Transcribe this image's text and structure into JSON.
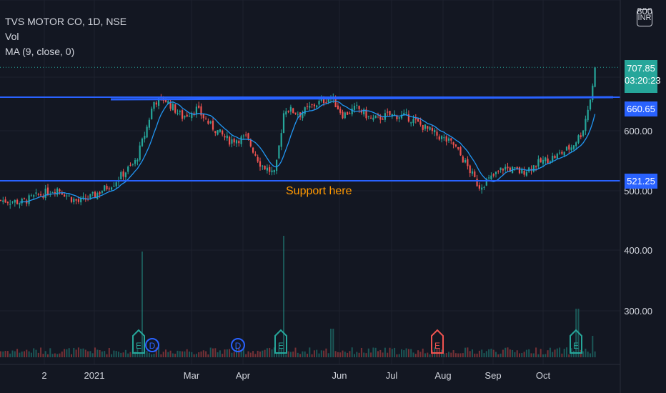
{
  "legend": {
    "symbol": "TVS MOTOR CO, 1D, NSE",
    "vol": "Vol",
    "ma": "MA (9, close, 0)"
  },
  "currency_button": "INR",
  "last_price": {
    "value": "707.85",
    "countdown": "03:20:23",
    "color": "#26a69a"
  },
  "resistance_label": "660.65",
  "support_label": "521.25",
  "annotation": "Support here",
  "colors": {
    "background": "#131722",
    "up": "#26a69a",
    "down": "#ef5350",
    "ma": "#2196f3",
    "level_line": "#2962ff",
    "annotation": "#ff9800",
    "text": "#d1d4dc"
  },
  "events": [
    {
      "type": "E",
      "month": "Feb",
      "color": "#26a69a"
    },
    {
      "type": "D",
      "month": "Feb",
      "color": "#2962ff"
    },
    {
      "type": "D",
      "month": "Apr",
      "color": "#2962ff"
    },
    {
      "type": "E",
      "month": "Apr",
      "color": "#26a69a"
    },
    {
      "type": "E",
      "month": "Aug",
      "color": "#ef5350"
    },
    {
      "type": "E",
      "month": "Oct",
      "color": "#26a69a"
    }
  ],
  "chart_data": {
    "type": "candlestick",
    "title": "TVS MOTOR CO, 1D, NSE",
    "x_ticks": [
      "2",
      "2021",
      "Mar",
      "Apr",
      "Jun",
      "Jul",
      "Aug",
      "Sep",
      "Oct"
    ],
    "y_ticks": [
      "800",
      "600.00",
      "500.00",
      "400.00",
      "300.00"
    ],
    "ylim": [
      215,
      820
    ],
    "horizontal_levels": [
      660.65,
      521.25
    ],
    "close_points": [
      {
        "x": 0,
        "y": 485
      },
      {
        "x": 30,
        "y": 482
      },
      {
        "x": 60,
        "y": 496
      },
      {
        "x": 80,
        "y": 505
      },
      {
        "x": 100,
        "y": 488
      },
      {
        "x": 110,
        "y": 482
      },
      {
        "x": 130,
        "y": 492
      },
      {
        "x": 160,
        "y": 515
      },
      {
        "x": 190,
        "y": 550
      },
      {
        "x": 205,
        "y": 605
      },
      {
        "x": 215,
        "y": 650
      },
      {
        "x": 230,
        "y": 655
      },
      {
        "x": 255,
        "y": 625
      },
      {
        "x": 275,
        "y": 638
      },
      {
        "x": 295,
        "y": 610
      },
      {
        "x": 320,
        "y": 585
      },
      {
        "x": 345,
        "y": 590
      },
      {
        "x": 365,
        "y": 545
      },
      {
        "x": 385,
        "y": 528
      },
      {
        "x": 398,
        "y": 640
      },
      {
        "x": 420,
        "y": 630
      },
      {
        "x": 440,
        "y": 645
      },
      {
        "x": 463,
        "y": 658
      },
      {
        "x": 480,
        "y": 628
      },
      {
        "x": 500,
        "y": 640
      },
      {
        "x": 520,
        "y": 620
      },
      {
        "x": 545,
        "y": 628
      },
      {
        "x": 570,
        "y": 625
      },
      {
        "x": 590,
        "y": 610
      },
      {
        "x": 610,
        "y": 595
      },
      {
        "x": 635,
        "y": 578
      },
      {
        "x": 655,
        "y": 540
      },
      {
        "x": 670,
        "y": 508
      },
      {
        "x": 685,
        "y": 520
      },
      {
        "x": 705,
        "y": 540
      },
      {
        "x": 730,
        "y": 532
      },
      {
        "x": 755,
        "y": 548
      },
      {
        "x": 780,
        "y": 560
      },
      {
        "x": 800,
        "y": 575
      },
      {
        "x": 815,
        "y": 600
      },
      {
        "x": 825,
        "y": 650
      },
      {
        "x": 835,
        "y": 707.85
      }
    ],
    "ma_series": {
      "name": "MA (9, close, 0)",
      "period": 9
    },
    "annotations": [
      "Support here"
    ]
  }
}
